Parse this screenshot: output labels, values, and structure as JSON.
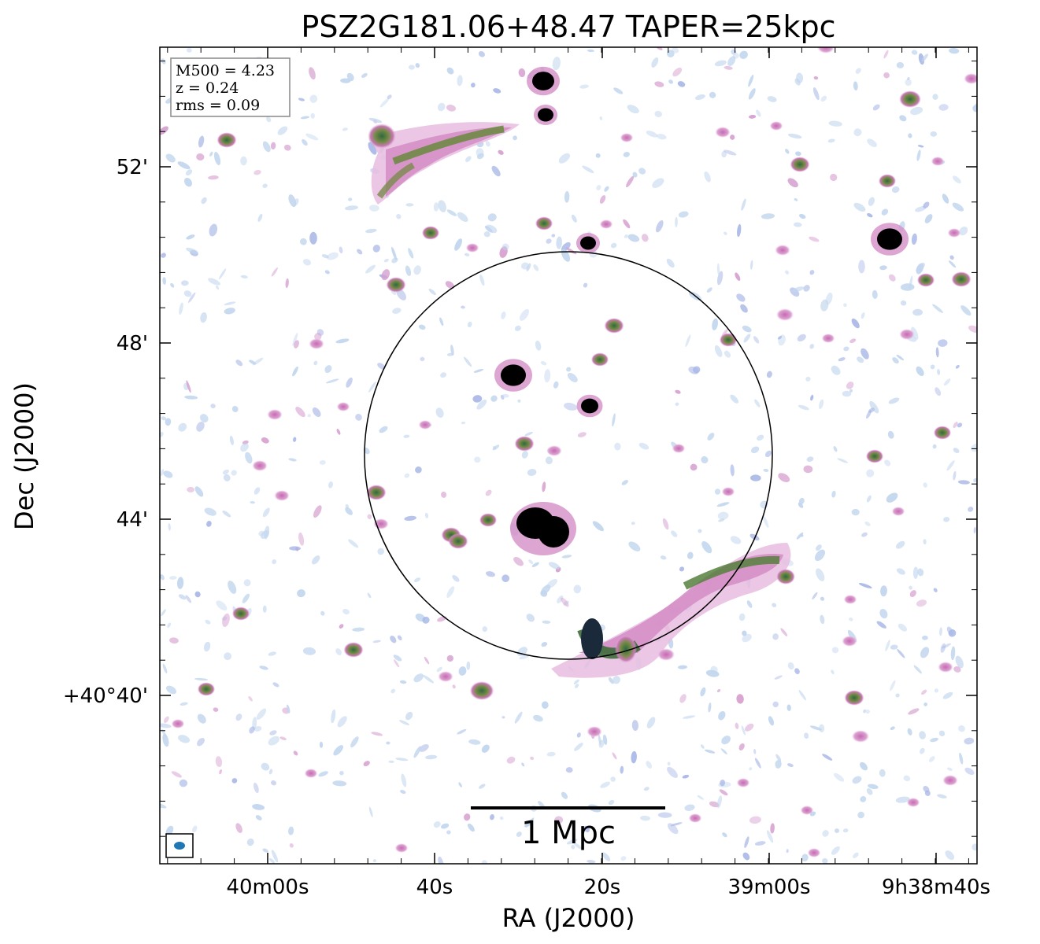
{
  "title": "PSZ2G181.06+48.47 TAPER=25kpc",
  "axes": {
    "x_label": "RA (J2000)",
    "y_label": "Dec (J2000)",
    "x_ticks": [
      "40m00s",
      "40s",
      "20s",
      "39m00s",
      "9h38m40s"
    ],
    "y_ticks": [
      "52'",
      "48'",
      "44'",
      "+40°40'"
    ]
  },
  "info_box": {
    "m500": "M500 = 4.23",
    "z": "z = 0.24",
    "rms": "rms = 0.09"
  },
  "scale_bar": {
    "label": "1 Mpc"
  },
  "colors": {
    "background": "#ffffff",
    "low_emission": "#b9c9ea",
    "mid_emission": "#d58fc6",
    "high_emission": "#4f7a3a",
    "peak_emission": "#000000",
    "beam": "#1f77b4"
  }
}
